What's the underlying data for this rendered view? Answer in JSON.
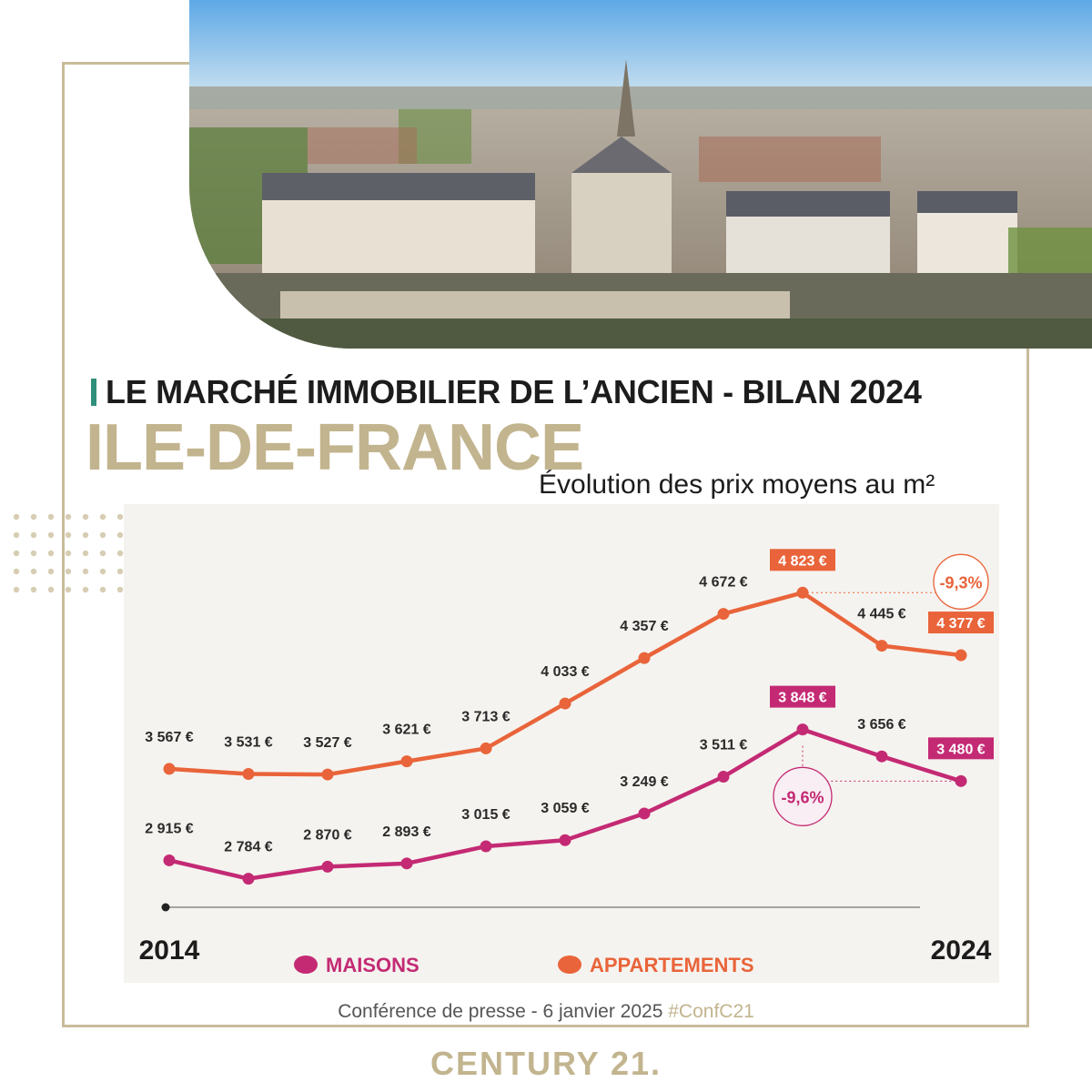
{
  "page": {
    "headline": "LE MARCHÉ IMMOBILIER DE L’ANCIEN - BILAN 2024",
    "region": "ILE-DE-FRANCE",
    "chart_title": "Évolution des prix moyens au m²",
    "footer_text": "Conférence de presse - 6 janvier 2025",
    "footer_tag": "#ConfC21",
    "brand": "CENTURY 21."
  },
  "colors": {
    "accent_gold": "#c2b48e",
    "accent_teal": "#2f8f7a",
    "maisons": "#c42a74",
    "appartements": "#e9643a"
  },
  "chart_data": {
    "type": "line",
    "title": "Évolution des prix moyens au m²",
    "x": [
      2014,
      2015,
      2016,
      2017,
      2018,
      2019,
      2020,
      2021,
      2022,
      2023,
      2024
    ],
    "x_tick_labels": [
      "2014",
      "2024"
    ],
    "ylim": [
      2600,
      5000
    ],
    "grid": false,
    "legend_position": "bottom",
    "series": [
      {
        "name": "APPARTEMENTS",
        "color": "#e9643a",
        "values": [
          3567,
          3531,
          3527,
          3621,
          3713,
          4033,
          4357,
          4672,
          4823,
          4445,
          4377
        ],
        "labels": [
          "3 567 €",
          "3 531 €",
          "3 527 €",
          "3 621 €",
          "3 713 €",
          "4 033 €",
          "4 357 €",
          "4 672 €",
          "4 823 €",
          "4 445 €",
          "4 377 €"
        ],
        "highlighted": [
          8,
          10
        ]
      },
      {
        "name": "MAISONS",
        "color": "#c42a74",
        "values": [
          2915,
          2784,
          2870,
          2893,
          3015,
          3059,
          3249,
          3511,
          3848,
          3656,
          3480
        ],
        "labels": [
          "2 915 €",
          "2 784 €",
          "2 870 €",
          "2 893 €",
          "3 015 €",
          "3 059 €",
          "3 249 €",
          "3 511 €",
          "3 848 €",
          "3 656 €",
          "3 480 €"
        ],
        "highlighted": [
          8,
          10
        ]
      }
    ],
    "annotations": [
      {
        "series": "APPARTEMENTS",
        "text": "-9,3%",
        "from_index": 8,
        "to_index": 10
      },
      {
        "series": "MAISONS",
        "text": "-9,6%",
        "from_index": 8,
        "to_index": 10
      }
    ],
    "legend": [
      "MAISONS",
      "APPARTEMENTS"
    ]
  }
}
